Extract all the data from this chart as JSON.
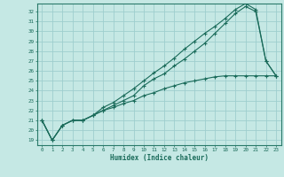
{
  "xlabel": "Humidex (Indice chaleur)",
  "background_color": "#c5e8e4",
  "grid_color": "#9ecece",
  "line_color": "#1a6b5a",
  "spine_color": "#2a7a6a",
  "xlim": [
    -0.5,
    23.5
  ],
  "ylim": [
    18.5,
    32.8
  ],
  "xticks": [
    0,
    1,
    2,
    3,
    4,
    5,
    6,
    7,
    8,
    9,
    10,
    11,
    12,
    13,
    14,
    15,
    16,
    17,
    18,
    19,
    20,
    21,
    22,
    23
  ],
  "yticks": [
    19,
    20,
    21,
    22,
    23,
    24,
    25,
    26,
    27,
    28,
    29,
    30,
    31,
    32
  ],
  "line1_x": [
    0,
    1,
    2,
    3,
    4,
    5,
    6,
    7,
    8,
    9,
    10,
    11,
    12,
    13,
    14,
    15,
    16,
    17,
    18,
    19,
    20,
    21,
    22,
    23
  ],
  "line1_y": [
    21.0,
    19.0,
    20.5,
    21.0,
    21.0,
    21.5,
    22.0,
    22.5,
    23.0,
    23.5,
    24.5,
    25.2,
    25.7,
    26.5,
    27.2,
    28.0,
    28.8,
    29.8,
    30.8,
    31.8,
    32.5,
    32.0,
    27.0,
    25.5
  ],
  "line2_x": [
    0,
    1,
    2,
    3,
    4,
    5,
    6,
    7,
    8,
    9,
    10,
    11,
    12,
    13,
    14,
    15,
    16,
    17,
    18,
    19,
    20,
    21,
    22,
    23
  ],
  "line2_y": [
    21.0,
    19.0,
    20.5,
    21.0,
    21.0,
    21.5,
    22.3,
    22.8,
    23.5,
    24.2,
    25.0,
    25.8,
    26.5,
    27.3,
    28.2,
    29.0,
    29.8,
    30.5,
    31.3,
    32.2,
    32.8,
    32.2,
    27.0,
    25.5
  ],
  "line3_x": [
    0,
    1,
    2,
    3,
    4,
    5,
    6,
    7,
    8,
    9,
    10,
    11,
    12,
    13,
    14,
    15,
    16,
    17,
    18,
    19,
    20,
    21,
    22,
    23
  ],
  "line3_y": [
    21.0,
    19.0,
    20.5,
    21.0,
    21.0,
    21.5,
    22.0,
    22.3,
    22.7,
    23.0,
    23.5,
    23.8,
    24.2,
    24.5,
    24.8,
    25.0,
    25.2,
    25.4,
    25.5,
    25.5,
    25.5,
    25.5,
    25.5,
    25.5
  ]
}
